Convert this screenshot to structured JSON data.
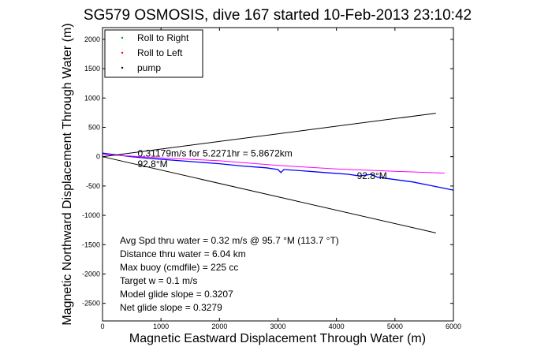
{
  "chart_data": {
    "type": "line",
    "title": "SG579 OSMOSIS, dive 167 started 10-Feb-2013 23:10:42",
    "xlabel": "Magnetic Eastward Displacement Through Water (m)",
    "ylabel": "Magnetic Northward Displacement Through Water (m)",
    "xlim": [
      0,
      6000
    ],
    "ylim": [
      -2800,
      2200
    ],
    "xticks": [
      0,
      1000,
      2000,
      3000,
      4000,
      5000,
      6000
    ],
    "yticks": [
      -2500,
      -2000,
      -1500,
      -1000,
      -500,
      0,
      500,
      1000,
      1500,
      2000
    ],
    "grid": false,
    "legend": {
      "placement": "top-left",
      "entries": [
        {
          "label": "Roll to Right",
          "color": "#00aa00"
        },
        {
          "label": "Roll to Left",
          "color": "#ff0000"
        },
        {
          "label": "pump",
          "color": "#000000"
        }
      ]
    },
    "series": [
      {
        "color": "#0000ff",
        "points": [
          [
            0,
            60
          ],
          [
            200,
            35
          ],
          [
            500,
            0
          ],
          [
            800,
            -30
          ],
          [
            1200,
            -60
          ],
          [
            1600,
            -90
          ],
          [
            2000,
            -120
          ],
          [
            2400,
            -160
          ],
          [
            2800,
            -190
          ],
          [
            3000,
            -220
          ],
          [
            3050,
            -270
          ],
          [
            3100,
            -220
          ],
          [
            3400,
            -240
          ],
          [
            3800,
            -270
          ],
          [
            4200,
            -300
          ],
          [
            4400,
            -330
          ],
          [
            4600,
            -300
          ],
          [
            4700,
            -350
          ],
          [
            5000,
            -390
          ],
          [
            5300,
            -430
          ],
          [
            5600,
            -490
          ],
          [
            5800,
            -530
          ],
          [
            6000,
            -570
          ]
        ]
      },
      {
        "color": "#ff00ff",
        "points": [
          [
            0,
            40
          ],
          [
            1000,
            -20
          ],
          [
            2000,
            -70
          ],
          [
            3000,
            -150
          ],
          [
            4000,
            -210
          ],
          [
            5000,
            -250
          ],
          [
            5850,
            -280
          ]
        ]
      },
      {
        "color": "#000000",
        "points": [
          [
            0,
            0
          ],
          [
            5700,
            740
          ]
        ]
      },
      {
        "color": "#000000",
        "points": [
          [
            0,
            0
          ],
          [
            5700,
            -1300
          ]
        ]
      }
    ],
    "annotations": [
      {
        "text": "0.31179m/s for 5.2271hr = 5.8672km",
        "x": 600,
        "y": 0
      },
      {
        "text": "92.8°M",
        "x": 600,
        "y": -180
      },
      {
        "text": "92.8°M",
        "x": 4350,
        "y": -380
      }
    ],
    "stats": [
      "Avg Spd thru water = 0.32 m/s @ 95.7 °M (113.7 °T)",
      "Distance thru water = 6.04 km",
      "Max buoy (cmdfile) = 225 cc",
      "Target w = 0.1 m/s",
      "Model glide slope = 0.3207",
      "Net glide slope = 0.3279"
    ]
  }
}
